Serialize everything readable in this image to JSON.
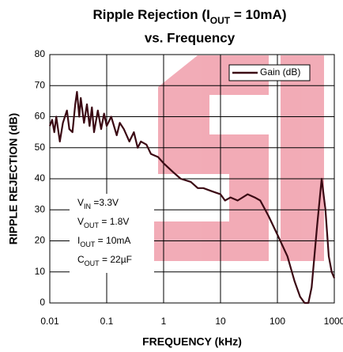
{
  "chart_data": {
    "type": "line",
    "title": {
      "main": "Ripple Rejection (I",
      "sub": "OUT",
      "rest": " = 10mA)",
      "line2": "vs. Frequency"
    },
    "xlabel": "FREQUENCY (kHz)",
    "ylabel": "RIPPLE REJECTION (dB)",
    "xscale": "log",
    "grid": true,
    "legend": "upper right",
    "xlim": [
      0.01,
      1000
    ],
    "ylim": [
      0,
      80
    ],
    "xticks": [
      0.01,
      0.1,
      1,
      10,
      100,
      1000
    ],
    "yticks": [
      0,
      10,
      20,
      30,
      40,
      50,
      60,
      70,
      80
    ],
    "x": [
      0.01,
      0.011,
      0.012,
      0.013,
      0.015,
      0.017,
      0.02,
      0.022,
      0.025,
      0.028,
      0.03,
      0.033,
      0.035,
      0.04,
      0.045,
      0.05,
      0.055,
      0.06,
      0.07,
      0.08,
      0.09,
      0.1,
      0.12,
      0.15,
      0.17,
      0.2,
      0.25,
      0.3,
      0.35,
      0.4,
      0.5,
      0.6,
      0.8,
      1,
      1.5,
      2,
      3,
      4,
      5,
      7,
      10,
      12,
      15,
      20,
      30,
      40,
      50,
      70,
      100,
      150,
      200,
      250,
      300,
      350,
      400,
      500,
      600,
      700,
      800,
      900,
      1000
    ],
    "series": [
      {
        "name": "Gain (dB)",
        "color": "#3b0a14",
        "values": [
          57,
          59,
          55,
          60,
          52,
          58,
          62,
          56,
          55,
          64,
          68,
          60,
          66,
          58,
          64,
          57,
          63,
          55,
          62,
          56,
          61,
          57,
          60,
          54,
          58,
          56,
          52,
          55,
          50,
          52,
          51,
          48,
          47,
          45,
          42,
          40,
          39,
          37,
          37,
          36,
          35,
          33,
          34,
          33,
          35,
          34,
          33,
          28,
          22,
          15,
          7,
          2,
          0,
          0,
          5,
          25,
          40,
          30,
          15,
          10,
          8
        ]
      }
    ],
    "annotations": [
      {
        "main": "V",
        "sub": "IN",
        "rest": " =3.3V"
      },
      {
        "main": "V",
        "sub": "OUT",
        "rest": " = 1.8V"
      },
      {
        "main": "I",
        "sub": "OUT",
        "rest": " = 10mA"
      },
      {
        "main": "C",
        "sub": "OUT",
        "rest": " = 22µF"
      }
    ]
  }
}
